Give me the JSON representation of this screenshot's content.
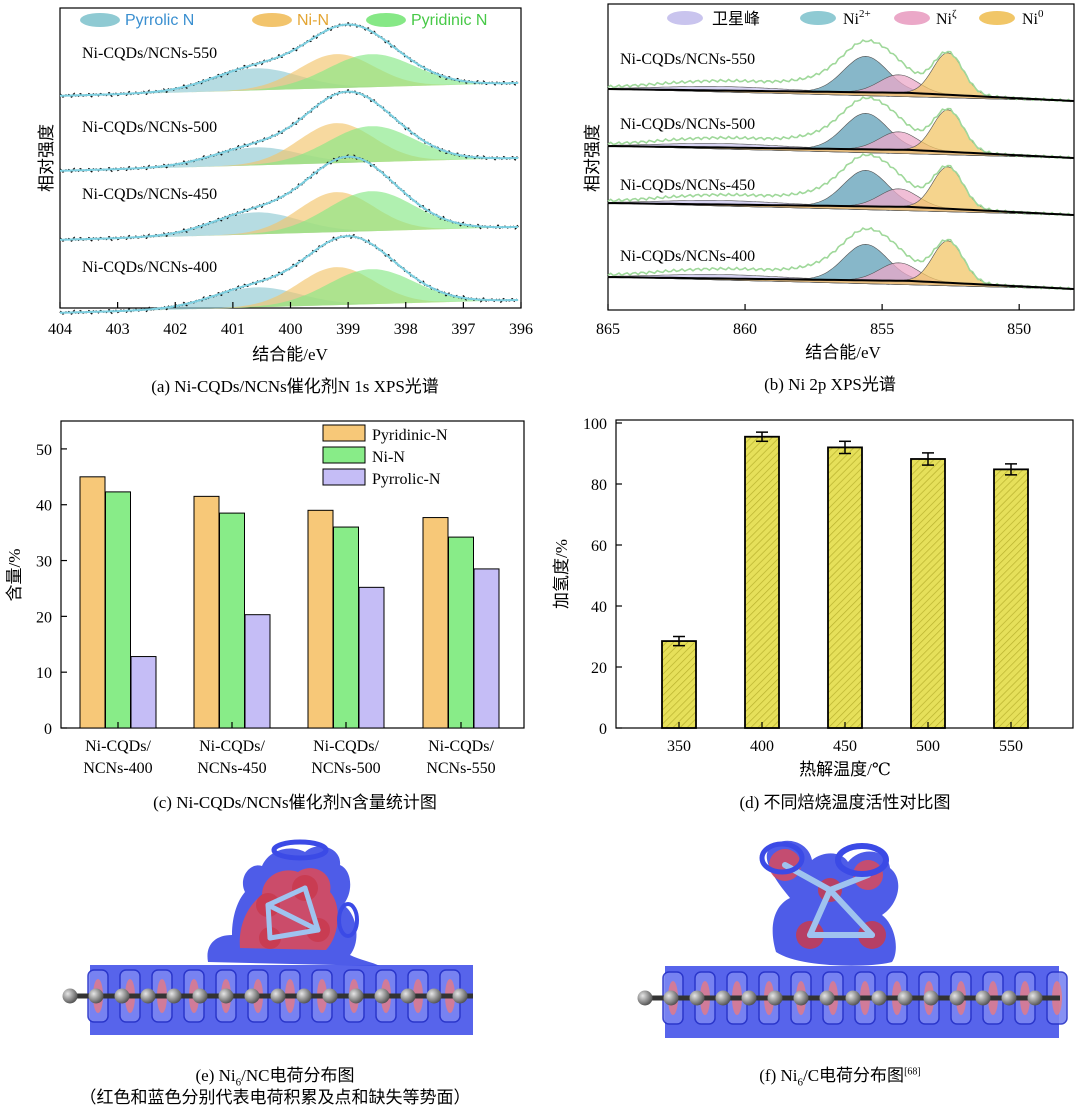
{
  "panel_a": {
    "caption": "(a) Ni-CQDs/NCNs催化剂N 1s XPS光谱",
    "legend": [
      "Pyrrolic N",
      "Ni-N",
      "Pyridinic N"
    ],
    "xlabel": "结合能/eV",
    "ylabel": "相对强度",
    "samples": [
      "Ni-CQDs/NCNs-550",
      "Ni-CQDs/NCNs-500",
      "Ni-CQDs/NCNs-450",
      "Ni-CQDs/NCNs-400"
    ],
    "xticks": [
      "404",
      "403",
      "402",
      "401",
      "400",
      "399",
      "398",
      "397",
      "396"
    ]
  },
  "panel_b": {
    "caption": "(b) Ni 2p XPS光谱",
    "legend": [
      "卫星峰",
      "Ni",
      "Ni",
      "Ni"
    ],
    "legend_sup": [
      "",
      "2+",
      "ζ",
      "0"
    ],
    "xlabel": "结合能/eV",
    "ylabel": "相对强度",
    "samples": [
      "Ni-CQDs/NCNs-550",
      "Ni-CQDs/NCNs-500",
      "Ni-CQDs/NCNs-450",
      "Ni-CQDs/NCNs-400"
    ],
    "xticks": [
      "865",
      "860",
      "855",
      "850"
    ]
  },
  "panel_c": {
    "caption": "(c) Ni-CQDs/NCNs催化剂N含量统计图",
    "ylabel": "含量/%",
    "yticks": [
      "0",
      "10",
      "20",
      "30",
      "40",
      "50"
    ],
    "category_line1": [
      "Ni-CQDs/",
      "Ni-CQDs/",
      "Ni-CQDs/",
      "Ni-CQDs/"
    ],
    "category_line2": [
      "NCNs-400",
      "NCNs-450",
      "NCNs-500",
      "NCNs-550"
    ]
  },
  "panel_d": {
    "caption": "(d) 不同焙烧温度活性对比图",
    "xlabel": "热解温度/℃",
    "ylabel": "加氢度/%",
    "yticks": [
      "0",
      "20",
      "40",
      "60",
      "80",
      "100"
    ]
  },
  "panel_e": {
    "caption_pre": "(e) Ni",
    "caption_sub": "6",
    "caption_post": "/NC电荷分布图",
    "note": "（红色和蓝色分别代表电荷积累及点和缺失等势面）"
  },
  "panel_f": {
    "caption_pre": "(f) Ni",
    "caption_sub": "6",
    "caption_post": "/C电荷分布图",
    "ref": "[68]"
  },
  "colors": {
    "pyrrolic": "#8fcad3",
    "ni_n": "#f2c46c",
    "pyridinic": "#86e886",
    "satellite": "#c9c4ee",
    "ni2": "#5f9fb7",
    "nizeta": "#eba8c8",
    "ni0": "#f1c667",
    "fit": "#7ccfe0",
    "bar_orange": "#f7c878",
    "bar_green": "#88ec88",
    "bar_purple": "#c5bdf6",
    "bar_yellow": "#e6e05a"
  },
  "chart_data": [
    {
      "type": "line",
      "panel": "a",
      "xlabel": "结合能/eV",
      "ylabel": "相对强度",
      "xlim": [
        404,
        396
      ],
      "series_peaks": [
        "Pyrrolic N",
        "Ni-N",
        "Pyridinic N"
      ],
      "peak_centers_eV": {
        "Pyrrolic N": 400.6,
        "Ni-N": 399.2,
        "Pyridinic N": 398.6
      },
      "samples": [
        "Ni-CQDs/NCNs-550",
        "Ni-CQDs/NCNs-500",
        "Ni-CQDs/NCNs-450",
        "Ni-CQDs/NCNs-400"
      ]
    },
    {
      "type": "line",
      "panel": "b",
      "xlabel": "结合能/eV",
      "ylabel": "相对强度",
      "xlim": [
        865,
        848
      ],
      "peak_centers_eV": {
        "卫星峰": 861.0,
        "Ni2+": 855.6,
        "Niζ": 854.4,
        "Ni0": 852.6
      },
      "samples": [
        "Ni-CQDs/NCNs-550",
        "Ni-CQDs/NCNs-500",
        "Ni-CQDs/NCNs-450",
        "Ni-CQDs/NCNs-400"
      ]
    },
    {
      "type": "bar",
      "panel": "c",
      "ylabel": "含量/%",
      "ylim": [
        0,
        55
      ],
      "categories": [
        "Ni-CQDs/NCNs-400",
        "Ni-CQDs/NCNs-450",
        "Ni-CQDs/NCNs-500",
        "Ni-CQDs/NCNs-550"
      ],
      "series": [
        {
          "name": "Pyridinic-N",
          "values": [
            45.0,
            41.5,
            39.0,
            37.7
          ]
        },
        {
          "name": "Ni-N",
          "values": [
            42.3,
            38.5,
            36.0,
            34.2
          ]
        },
        {
          "name": "Pyrrolic-N",
          "values": [
            12.8,
            20.3,
            25.2,
            28.5
          ]
        }
      ]
    },
    {
      "type": "bar",
      "panel": "d",
      "xlabel": "热解温度/℃",
      "ylabel": "加氢度/%",
      "ylim": [
        0,
        100
      ],
      "categories": [
        "350",
        "400",
        "450",
        "500",
        "550"
      ],
      "values": [
        28.5,
        95.5,
        92.0,
        88.2,
        84.8
      ],
      "errors": [
        1.5,
        1.5,
        2.0,
        2.0,
        1.8
      ]
    }
  ]
}
